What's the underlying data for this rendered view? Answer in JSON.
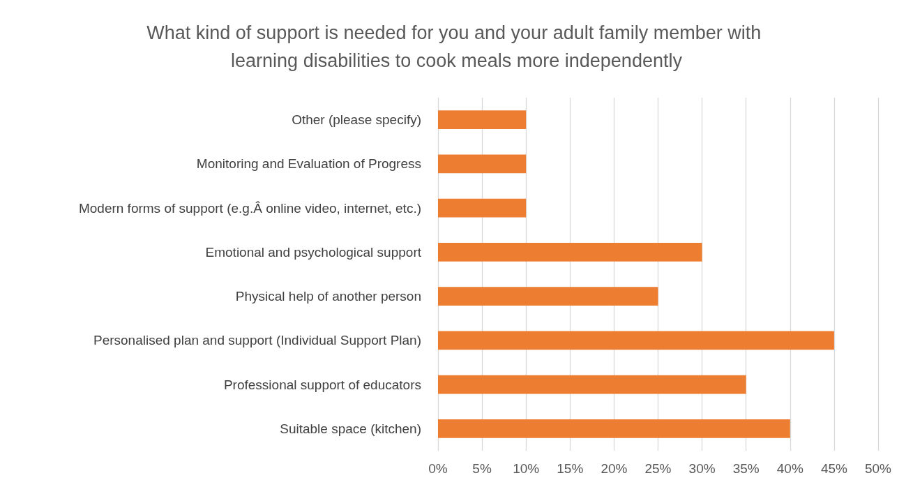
{
  "chart_data": {
    "type": "bar",
    "orientation": "horizontal",
    "title": "What kind of support is needed for you and your adult family member with learning disabilities to cook meals more independently",
    "categories": [
      "Other (please specify)",
      "Monitoring and Evaluation of Progress",
      "Modern forms of support (e.g.Â online video, internet, etc.)",
      "Emotional and psychological support",
      "Physical help of another person",
      "Personalised plan and support (Individual Support Plan)",
      "Professional support of educators",
      "Suitable space (kitchen)"
    ],
    "values": [
      10,
      10,
      10,
      30,
      25,
      45,
      35,
      40
    ],
    "color": "#ed7d31",
    "xlim": [
      0,
      50
    ],
    "xticks": [
      {
        "value": 0,
        "label": "0%"
      },
      {
        "value": 5,
        "label": "5%"
      },
      {
        "value": 10,
        "label": "10%"
      },
      {
        "value": 15,
        "label": "15%"
      },
      {
        "value": 20,
        "label": "20%"
      },
      {
        "value": 25,
        "label": "25%"
      },
      {
        "value": 30,
        "label": "30%"
      },
      {
        "value": 35,
        "label": "35%"
      },
      {
        "value": 40,
        "label": "40%"
      },
      {
        "value": 45,
        "label": "45%"
      },
      {
        "value": 50,
        "label": "50%"
      }
    ],
    "grid": "x"
  }
}
